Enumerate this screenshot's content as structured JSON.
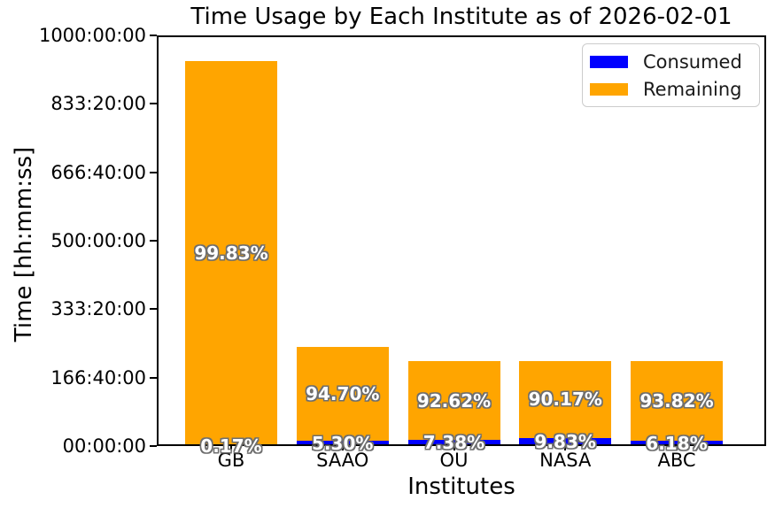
{
  "chart_data": {
    "type": "bar",
    "stacked": true,
    "title": "Time Usage by Each Institute as of 2026-02-01",
    "xlabel": "Institutes",
    "ylabel": "Time [hh:mm:ss]",
    "categories": [
      "GB",
      "SAAO",
      "OU",
      "NASA",
      "ABC"
    ],
    "total_hours_est": [
      937.5,
      241.7,
      206.7,
      206.7,
      206.7
    ],
    "series": [
      {
        "name": "Consumed",
        "color": "#0000ff",
        "percent": [
          0.17,
          5.3,
          7.38,
          9.83,
          6.18
        ],
        "hours_est": [
          1.6,
          12.8,
          15.3,
          20.3,
          12.8
        ]
      },
      {
        "name": "Remaining",
        "color": "#ffa500",
        "percent": [
          99.83,
          94.7,
          92.62,
          90.17,
          93.82
        ],
        "hours_est": [
          935.9,
          228.9,
          191.4,
          186.4,
          193.9
        ]
      }
    ],
    "bar_labels_consumed": [
      "0.17%",
      "5.30%",
      "7.38%",
      "9.83%",
      "6.18%"
    ],
    "bar_labels_remaining": [
      "99.83%",
      "94.70%",
      "92.62%",
      "90.17%",
      "93.82%"
    ],
    "yticks": [
      {
        "hours": 0,
        "label": "00:00:00"
      },
      {
        "hours": 166.6667,
        "label": "166:40:00"
      },
      {
        "hours": 333.3333,
        "label": "333:20:00"
      },
      {
        "hours": 500,
        "label": "500:00:00"
      },
      {
        "hours": 666.6667,
        "label": "666:40:00"
      },
      {
        "hours": 833.3333,
        "label": "833:20:00"
      },
      {
        "hours": 1000,
        "label": "1000:00:00"
      }
    ],
    "ylim": [
      0,
      1000
    ],
    "grid": false,
    "legend_position": "upper right",
    "colors": {
      "consumed": "#0000ff",
      "remaining": "#ffa500",
      "bar_label_text": "#ffffff",
      "bar_label_outline": "#6e6e6e",
      "axes": "#000000",
      "legend_border": "#cccccc"
    }
  }
}
